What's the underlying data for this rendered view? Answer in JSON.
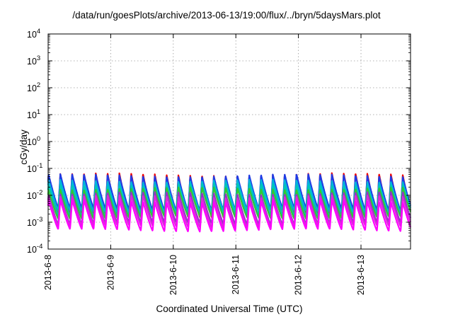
{
  "chart_data": {
    "type": "line",
    "title": "/data/run/goesPlots/archive/2013-06-13/19:00/flux/../bryn/5daysMars.plot",
    "xlabel": "Coordinated Universal Time (UTC)",
    "ylabel": "cGy/day",
    "yscale": "log",
    "ylim": [
      0.0001,
      10000
    ],
    "xlim": [
      "2013-06-08T00:00",
      "2013-06-13T19:00"
    ],
    "y_ticks": [
      {
        "label": "10",
        "exp": "-4",
        "value": 0.0001
      },
      {
        "label": "10",
        "exp": "-3",
        "value": 0.001
      },
      {
        "label": "10",
        "exp": "-2",
        "value": 0.01
      },
      {
        "label": "10",
        "exp": "-1",
        "value": 0.1
      },
      {
        "label": "10",
        "exp": "0",
        "value": 1
      },
      {
        "label": "10",
        "exp": "1",
        "value": 10
      },
      {
        "label": "10",
        "exp": "2",
        "value": 100
      },
      {
        "label": "10",
        "exp": "3",
        "value": 1000
      },
      {
        "label": "10",
        "exp": "4",
        "value": 10000
      }
    ],
    "x_ticks": [
      "2013-6-8",
      "2013-6-9",
      "2013-6-10",
      "2013-6-11",
      "2013-6-12",
      "2013-6-13"
    ],
    "grid": true,
    "legend": "none",
    "oscillation_cycles_per_day": 5.3,
    "series": [
      {
        "color": "#f00000",
        "peak": 0.06,
        "trough": 0.0017
      },
      {
        "color": "#1e3ce6",
        "peak": 0.055,
        "trough": 0.003
      },
      {
        "color": "#00b4dc",
        "peak": 0.035,
        "trough": 0.0025
      },
      {
        "color": "#00c8b4",
        "peak": 0.025,
        "trough": 0.0018
      },
      {
        "color": "#32c832",
        "peak": 0.018,
        "trough": 0.0015
      },
      {
        "color": "#9632c8",
        "peak": 0.012,
        "trough": 0.0009
      },
      {
        "color": "#dc28dc",
        "peak": 0.009,
        "trough": 0.0007
      },
      {
        "color": "#ff00ff",
        "peak": 0.006,
        "trough": 0.0005
      }
    ]
  }
}
